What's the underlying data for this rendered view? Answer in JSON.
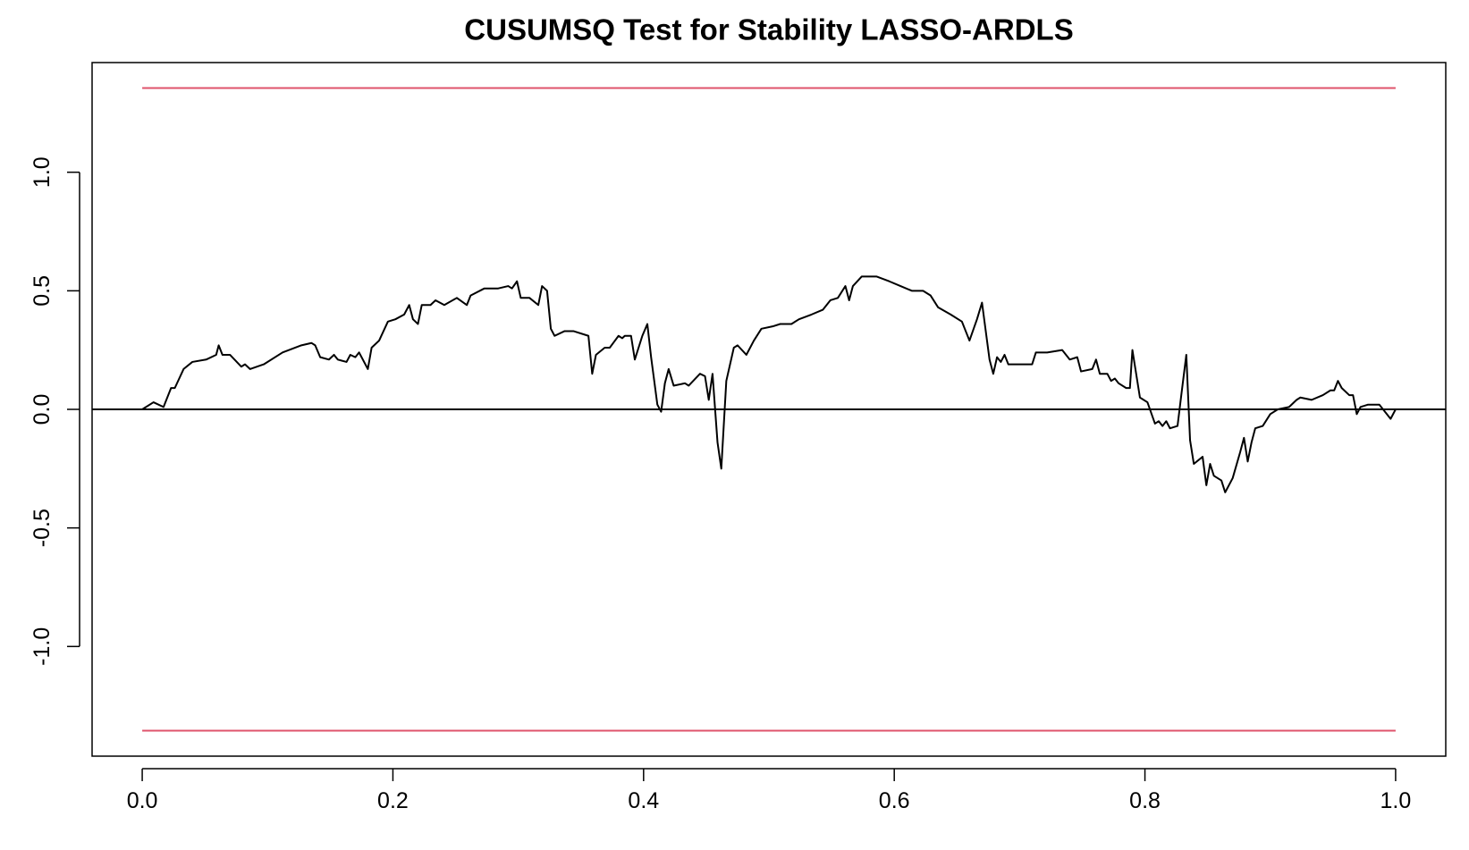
{
  "chart_data": {
    "type": "line",
    "title": "CUSUMSQ Test for Stability LASSO-ARDLS",
    "xlim": [
      -0.04,
      1.04
    ],
    "ylim": [
      -1.4625,
      1.4625
    ],
    "xticks": [
      {
        "value": 0,
        "label": "0.0"
      },
      0.2,
      0.4,
      0.6,
      0.8,
      {
        "value": 1,
        "label": "1.0"
      }
    ],
    "yticks": [
      {
        "value": -1,
        "label": "-1.0"
      },
      -0.5,
      {
        "value": 0,
        "label": "0.0"
      },
      0.5,
      {
        "value": 1,
        "label": "1.0"
      }
    ],
    "hline": 0,
    "bounds": {
      "color": "#df536b",
      "x": [
        0,
        1
      ],
      "upper": [
        1.355,
        1.355
      ],
      "lower": [
        -1.355,
        -1.355
      ]
    },
    "x": [
      0,
      0.009,
      0.017,
      0.023,
      0.026,
      0.033,
      0.04,
      0.051,
      0.059,
      0.061,
      0.064,
      0.07,
      0.079,
      0.082,
      0.086,
      0.097,
      0.112,
      0.127,
      0.135,
      0.138,
      0.142,
      0.149,
      0.153,
      0.156,
      0.163,
      0.166,
      0.17,
      0.173,
      0.18,
      0.183,
      0.189,
      0.196,
      0.202,
      0.209,
      0.213,
      0.216,
      0.22,
      0.223,
      0.23,
      0.234,
      0.241,
      0.251,
      0.259,
      0.262,
      0.273,
      0.284,
      0.292,
      0.295,
      0.299,
      0.302,
      0.309,
      0.316,
      0.319,
      0.323,
      0.326,
      0.329,
      0.337,
      0.344,
      0.356,
      0.359,
      0.362,
      0.369,
      0.373,
      0.38,
      0.383,
      0.385,
      0.39,
      0.393,
      0.399,
      0.403,
      0.406,
      0.411,
      0.414,
      0.417,
      0.42,
      0.424,
      0.433,
      0.436,
      0.445,
      0.449,
      0.452,
      0.455,
      0.459,
      0.462,
      0.466,
      0.472,
      0.475,
      0.482,
      0.488,
      0.494,
      0.503,
      0.509,
      0.518,
      0.524,
      0.534,
      0.543,
      0.549,
      0.555,
      0.561,
      0.564,
      0.567,
      0.574,
      0.58,
      0.586,
      0.596,
      0.605,
      0.614,
      0.623,
      0.629,
      0.635,
      0.645,
      0.654,
      0.66,
      0.666,
      0.67,
      0.676,
      0.679,
      0.682,
      0.685,
      0.688,
      0.691,
      0.701,
      0.71,
      0.713,
      0.722,
      0.734,
      0.74,
      0.746,
      0.749,
      0.758,
      0.761,
      0.764,
      0.77,
      0.773,
      0.776,
      0.779,
      0.785,
      0.788,
      0.79,
      0.796,
      0.802,
      0.808,
      0.811,
      0.814,
      0.817,
      0.82,
      0.826,
      0.829,
      0.833,
      0.836,
      0.839,
      0.846,
      0.849,
      0.852,
      0.855,
      0.861,
      0.864,
      0.87,
      0.876,
      0.879,
      0.882,
      0.885,
      0.888,
      0.894,
      0.9,
      0.906,
      0.915,
      0.921,
      0.924,
      0.933,
      0.942,
      0.948,
      0.951,
      0.954,
      0.957,
      0.963,
      0.966,
      0.969,
      0.972,
      0.978,
      0.987,
      0.99,
      0.996,
      1.0
    ],
    "series": [
      {
        "color": "#000000",
        "values": [
          0,
          0.03,
          0.01,
          0.09,
          0.09,
          0.17,
          0.2,
          0.21,
          0.23,
          0.27,
          0.23,
          0.23,
          0.18,
          0.19,
          0.17,
          0.19,
          0.24,
          0.27,
          0.28,
          0.27,
          0.22,
          0.21,
          0.23,
          0.21,
          0.2,
          0.23,
          0.22,
          0.24,
          0.17,
          0.26,
          0.29,
          0.37,
          0.38,
          0.4,
          0.44,
          0.38,
          0.36,
          0.44,
          0.44,
          0.46,
          0.44,
          0.47,
          0.44,
          0.48,
          0.51,
          0.51,
          0.52,
          0.51,
          0.54,
          0.47,
          0.47,
          0.44,
          0.52,
          0.5,
          0.34,
          0.31,
          0.33,
          0.33,
          0.31,
          0.15,
          0.23,
          0.26,
          0.26,
          0.31,
          0.3,
          0.31,
          0.31,
          0.21,
          0.31,
          0.36,
          0.22,
          0.02,
          -0.01,
          0.11,
          0.17,
          0.1,
          0.11,
          0.1,
          0.15,
          0.14,
          0.04,
          0.15,
          -0.14,
          -0.25,
          0.12,
          0.26,
          0.27,
          0.23,
          0.29,
          0.34,
          0.35,
          0.36,
          0.36,
          0.38,
          0.4,
          0.42,
          0.46,
          0.47,
          0.52,
          0.46,
          0.52,
          0.56,
          0.56,
          0.56,
          0.54,
          0.52,
          0.5,
          0.5,
          0.48,
          0.43,
          0.4,
          0.37,
          0.29,
          0.38,
          0.45,
          0.21,
          0.15,
          0.22,
          0.2,
          0.23,
          0.19,
          0.19,
          0.19,
          0.24,
          0.24,
          0.25,
          0.21,
          0.22,
          0.16,
          0.17,
          0.21,
          0.15,
          0.15,
          0.12,
          0.13,
          0.11,
          0.09,
          0.09,
          0.25,
          0.05,
          0.03,
          -0.06,
          -0.05,
          -0.07,
          -0.05,
          -0.08,
          -0.07,
          0.06,
          0.23,
          -0.13,
          -0.23,
          -0.2,
          -0.32,
          -0.23,
          -0.28,
          -0.3,
          -0.35,
          -0.29,
          -0.18,
          -0.12,
          -0.22,
          -0.14,
          -0.08,
          -0.07,
          -0.02,
          0.0,
          0.01,
          0.04,
          0.05,
          0.04,
          0.06,
          0.08,
          0.08,
          0.12,
          0.09,
          0.06,
          0.06,
          -0.02,
          0.01,
          0.02,
          0.02,
          0.0,
          -0.04,
          0.0
        ]
      }
    ]
  }
}
